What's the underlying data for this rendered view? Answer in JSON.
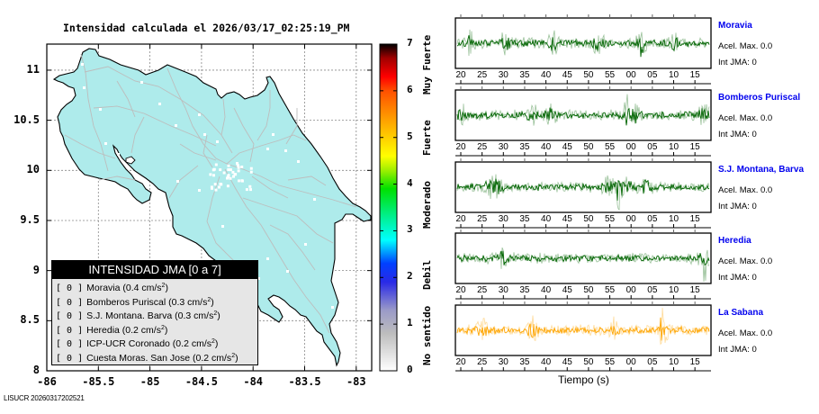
{
  "map": {
    "title": "Intensidad calculada el 2026/03/17_02:25:19_PM",
    "fill_color": "#aeebeb",
    "yticks": [
      "11",
      "10.5",
      "10",
      "9.5",
      "9",
      "8.5",
      "8"
    ],
    "ytick_values": [
      11,
      10.5,
      10,
      9.5,
      9,
      8.5,
      8
    ],
    "xticks": [
      "-86",
      "-85.5",
      "-85",
      "-84.5",
      "-84",
      "-83.5",
      "-83"
    ],
    "xtick_values": [
      -86,
      -85.5,
      -85,
      -84.5,
      -84,
      -83.5,
      -83
    ],
    "xlim": [
      -86,
      -82.85
    ],
    "ylim": [
      8,
      11.26
    ]
  },
  "legend": {
    "title": "INTENSIDAD JMA [0 a 7]",
    "rows": [
      {
        "bracket": "[ 0 ]",
        "label": "Moravia (0.4 cm/s",
        "sup": "2",
        "close": ")"
      },
      {
        "bracket": "[ 0 ]",
        "label": "Bomberos Puriscal (0.3 cm/s",
        "sup": "2",
        "close": ")"
      },
      {
        "bracket": "[ 0 ]",
        "label": "S.J. Montana. Barva (0.3 cm/s",
        "sup": "2",
        "close": ")"
      },
      {
        "bracket": "[ 0 ]",
        "label": "Heredia (0.2 cm/s",
        "sup": "2",
        "close": ")"
      },
      {
        "bracket": "[ 0 ]",
        "label": "ICP-UCR Coronado (0.2 cm/s",
        "sup": "2",
        "close": ")"
      },
      {
        "bracket": "[ 0 ]",
        "label": "Cuesta Moras. San Jose (0.2 cm/s",
        "sup": "2",
        "close": ")"
      }
    ]
  },
  "colorbar": {
    "ticks": [
      "0",
      "1",
      "2",
      "3",
      "4",
      "5",
      "6",
      "7"
    ],
    "range": [
      0,
      7
    ],
    "categories": [
      "No sentido",
      "Debil",
      "Moderado",
      "Fuerte",
      "Muy Fuerte"
    ],
    "category_centers": [
      0.75,
      2.05,
      3.55,
      5.0,
      6.55
    ],
    "stops": [
      {
        "v": 0.0,
        "c": "#ffffff"
      },
      {
        "v": 0.8,
        "c": "#bdbdbd"
      },
      {
        "v": 1.3,
        "c": "#9a9ac8"
      },
      {
        "v": 1.9,
        "c": "#2a2ae6"
      },
      {
        "v": 2.3,
        "c": "#0040ff"
      },
      {
        "v": 2.8,
        "c": "#00ffff"
      },
      {
        "v": 3.3,
        "c": "#00f090"
      },
      {
        "v": 3.9,
        "c": "#00e000"
      },
      {
        "v": 4.3,
        "c": "#a0f000"
      },
      {
        "v": 4.6,
        "c": "#ffff00"
      },
      {
        "v": 5.3,
        "c": "#ffaa00"
      },
      {
        "v": 6.0,
        "c": "#ff5000"
      },
      {
        "v": 6.3,
        "c": "#ff0000"
      },
      {
        "v": 6.7,
        "c": "#a00000"
      },
      {
        "v": 7.0,
        "c": "#000000"
      }
    ]
  },
  "stations": [
    {
      "name": "Moravia",
      "acel": "Acel. Max. 0.0",
      "int": "Int JMA: 0",
      "color": "#006400",
      "bursts": [
        0.05,
        0.19,
        0.38,
        0.56,
        0.73,
        0.86
      ],
      "peak": 0.73
    },
    {
      "name": "Bomberos Puriscal",
      "acel": "Acel. Max. 0.0",
      "int": "Int JMA: 0",
      "color": "#006400",
      "bursts": [
        0.02,
        0.3,
        0.37,
        0.68,
        0.71,
        0.98
      ],
      "peak": 0.67
    },
    {
      "name": "S.J. Montana, Barva",
      "acel": "Acel. Max. 0.0",
      "int": "Int JMA: 0",
      "color": "#006400",
      "bursts": [
        0.13,
        0.16,
        0.6,
        0.65,
        0.69,
        0.75
      ],
      "peak": 0.64
    },
    {
      "name": "Heredia",
      "acel": "Acel. Max. 0.0",
      "int": "Int JMA: 0",
      "color": "#006400",
      "bursts": [
        0.18,
        0.98
      ],
      "peak": 0.98
    },
    {
      "name": "La Sabana",
      "acel": "Acel. Max. 0.0",
      "int": "Int JMA: 0",
      "color": "#ffa500",
      "bursts": [
        0.1,
        0.3,
        0.62,
        0.82
      ],
      "peak": 0.81
    }
  ],
  "waveform_axis": {
    "tick_labels": [
      "20",
      "25",
      "30",
      "35",
      "40",
      "45",
      "50",
      "55",
      "00",
      "05",
      "10",
      "15"
    ],
    "xlabel": "Tiempo (s)"
  },
  "chart_data": {
    "type": "map",
    "title": "Intensidad calculada el 2026/03/17_02:25:19_PM",
    "xlim": [
      -86,
      -82.85
    ],
    "ylim": [
      8,
      11.26
    ],
    "colorbar_range": [
      0,
      7
    ],
    "station_intensities": [
      {
        "station": "Moravia",
        "intensity": 0,
        "pga_cm_s2": 0.4
      },
      {
        "station": "Bomberos Puriscal",
        "intensity": 0,
        "pga_cm_s2": 0.3
      },
      {
        "station": "S.J. Montana. Barva",
        "intensity": 0,
        "pga_cm_s2": 0.3
      },
      {
        "station": "Heredia",
        "intensity": 0,
        "pga_cm_s2": 0.2
      },
      {
        "station": "ICP-UCR Coronado",
        "intensity": 0,
        "pga_cm_s2": 0.2
      },
      {
        "station": "Cuesta Moras. San Jose",
        "intensity": 0,
        "pga_cm_s2": 0.2
      }
    ]
  },
  "footer": "LISUCR 20260317202521"
}
